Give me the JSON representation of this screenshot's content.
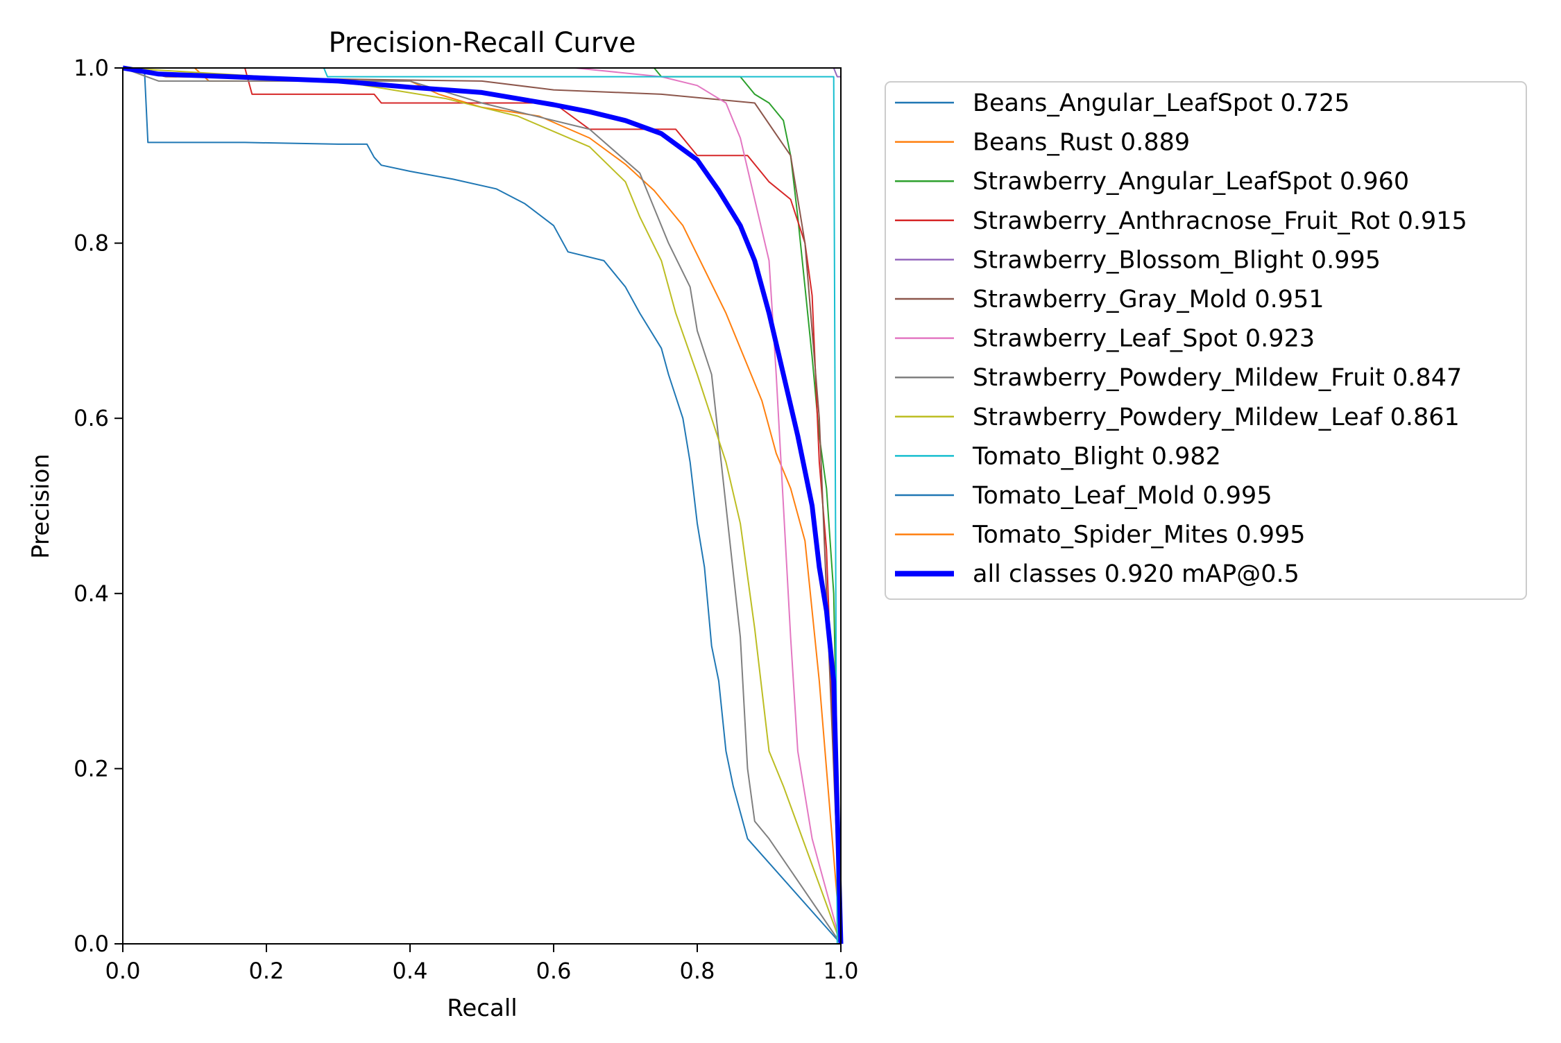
{
  "chart_data": {
    "type": "line",
    "title": "Precision-Recall Curve",
    "xlabel": "Recall",
    "ylabel": "Precision",
    "xlim": [
      0,
      1
    ],
    "ylim": [
      0,
      1
    ],
    "xticks": [
      "0.0",
      "0.2",
      "0.4",
      "0.6",
      "0.8",
      "1.0"
    ],
    "yticks": [
      "0.0",
      "0.2",
      "0.4",
      "0.6",
      "0.8",
      "1.0"
    ],
    "grid": false,
    "legend_position": "outside-right-top",
    "series": [
      {
        "name": "Beans_Angular_LeafSpot 0.725",
        "color": "#1f77b4",
        "width": 2,
        "points": [
          [
            0,
            1.0
          ],
          [
            0.03,
            1.0
          ],
          [
            0.035,
            0.915
          ],
          [
            0.17,
            0.915
          ],
          [
            0.3,
            0.913
          ],
          [
            0.34,
            0.913
          ],
          [
            0.35,
            0.898
          ],
          [
            0.36,
            0.889
          ],
          [
            0.4,
            0.882
          ],
          [
            0.46,
            0.873
          ],
          [
            0.52,
            0.862
          ],
          [
            0.56,
            0.845
          ],
          [
            0.6,
            0.82
          ],
          [
            0.62,
            0.79
          ],
          [
            0.67,
            0.78
          ],
          [
            0.7,
            0.75
          ],
          [
            0.72,
            0.72
          ],
          [
            0.75,
            0.68
          ],
          [
            0.76,
            0.65
          ],
          [
            0.78,
            0.6
          ],
          [
            0.79,
            0.55
          ],
          [
            0.8,
            0.48
          ],
          [
            0.81,
            0.43
          ],
          [
            0.82,
            0.34
          ],
          [
            0.83,
            0.3
          ],
          [
            0.84,
            0.22
          ],
          [
            0.85,
            0.18
          ],
          [
            0.87,
            0.12
          ],
          [
            1.0,
            0.0
          ]
        ]
      },
      {
        "name": "Beans_Rust 0.889",
        "color": "#ff7f0e",
        "width": 2,
        "points": [
          [
            0,
            1.0
          ],
          [
            0.1,
            1.0
          ],
          [
            0.12,
            0.985
          ],
          [
            0.4,
            0.985
          ],
          [
            0.44,
            0.97
          ],
          [
            0.5,
            0.955
          ],
          [
            0.58,
            0.945
          ],
          [
            0.65,
            0.92
          ],
          [
            0.7,
            0.89
          ],
          [
            0.74,
            0.86
          ],
          [
            0.78,
            0.82
          ],
          [
            0.81,
            0.77
          ],
          [
            0.84,
            0.72
          ],
          [
            0.87,
            0.66
          ],
          [
            0.89,
            0.62
          ],
          [
            0.91,
            0.56
          ],
          [
            0.93,
            0.52
          ],
          [
            0.95,
            0.46
          ],
          [
            0.97,
            0.3
          ],
          [
            1.0,
            0.0
          ]
        ]
      },
      {
        "name": "Strawberry_Angular_LeafSpot 0.960",
        "color": "#2ca02c",
        "width": 2,
        "points": [
          [
            0,
            1.0
          ],
          [
            0.74,
            1.0
          ],
          [
            0.75,
            0.99
          ],
          [
            0.86,
            0.99
          ],
          [
            0.88,
            0.97
          ],
          [
            0.9,
            0.96
          ],
          [
            0.92,
            0.94
          ],
          [
            0.93,
            0.9
          ],
          [
            0.94,
            0.83
          ],
          [
            0.95,
            0.75
          ],
          [
            0.96,
            0.67
          ],
          [
            0.97,
            0.58
          ],
          [
            0.98,
            0.52
          ],
          [
            0.99,
            0.4
          ],
          [
            1.0,
            0.0
          ]
        ]
      },
      {
        "name": "Strawberry_Anthracnose_Fruit_Rot 0.915",
        "color": "#d62728",
        "width": 2,
        "points": [
          [
            0,
            1.0
          ],
          [
            0.17,
            1.0
          ],
          [
            0.18,
            0.97
          ],
          [
            0.35,
            0.97
          ],
          [
            0.36,
            0.96
          ],
          [
            0.6,
            0.96
          ],
          [
            0.65,
            0.93
          ],
          [
            0.77,
            0.93
          ],
          [
            0.8,
            0.9
          ],
          [
            0.87,
            0.9
          ],
          [
            0.9,
            0.87
          ],
          [
            0.93,
            0.85
          ],
          [
            0.95,
            0.8
          ],
          [
            0.96,
            0.74
          ],
          [
            0.97,
            0.55
          ],
          [
            0.98,
            0.45
          ],
          [
            1.0,
            0.0
          ]
        ]
      },
      {
        "name": "Strawberry_Blossom_Blight 0.995",
        "color": "#9467bd",
        "width": 2,
        "points": [
          [
            0,
            1.0
          ],
          [
            0.99,
            1.0
          ],
          [
            0.995,
            0.99
          ],
          [
            1.0,
            0.99
          ],
          [
            1.0,
            0.0
          ]
        ]
      },
      {
        "name": "Strawberry_Gray_Mold 0.951",
        "color": "#8c564b",
        "width": 2,
        "points": [
          [
            0,
            1.0
          ],
          [
            0.06,
            0.99
          ],
          [
            0.5,
            0.985
          ],
          [
            0.6,
            0.975
          ],
          [
            0.75,
            0.97
          ],
          [
            0.88,
            0.96
          ],
          [
            0.93,
            0.9
          ],
          [
            0.95,
            0.8
          ],
          [
            0.96,
            0.7
          ],
          [
            0.97,
            0.6
          ],
          [
            0.98,
            0.4
          ],
          [
            1.0,
            0.0
          ]
        ]
      },
      {
        "name": "Strawberry_Leaf_Spot 0.923",
        "color": "#e377c2",
        "width": 2,
        "points": [
          [
            0,
            1.0
          ],
          [
            0.5,
            1.0
          ],
          [
            0.63,
            1.0
          ],
          [
            0.75,
            0.99
          ],
          [
            0.8,
            0.98
          ],
          [
            0.84,
            0.96
          ],
          [
            0.86,
            0.92
          ],
          [
            0.88,
            0.85
          ],
          [
            0.9,
            0.78
          ],
          [
            0.91,
            0.65
          ],
          [
            0.92,
            0.5
          ],
          [
            0.93,
            0.35
          ],
          [
            0.94,
            0.22
          ],
          [
            0.96,
            0.12
          ],
          [
            1.0,
            0.0
          ]
        ]
      },
      {
        "name": "Strawberry_Powdery_Mildew_Fruit 0.847",
        "color": "#7f7f7f",
        "width": 2,
        "points": [
          [
            0,
            1.0
          ],
          [
            0.05,
            0.985
          ],
          [
            0.4,
            0.985
          ],
          [
            0.5,
            0.96
          ],
          [
            0.65,
            0.93
          ],
          [
            0.72,
            0.88
          ],
          [
            0.76,
            0.8
          ],
          [
            0.79,
            0.75
          ],
          [
            0.8,
            0.7
          ],
          [
            0.82,
            0.65
          ],
          [
            0.84,
            0.5
          ],
          [
            0.86,
            0.35
          ],
          [
            0.87,
            0.2
          ],
          [
            0.88,
            0.14
          ],
          [
            0.9,
            0.12
          ],
          [
            1.0,
            0.0
          ]
        ]
      },
      {
        "name": "Strawberry_Powdery_Mildew_Leaf 0.861",
        "color": "#bcbd22",
        "width": 2,
        "points": [
          [
            0,
            1.0
          ],
          [
            0.3,
            0.985
          ],
          [
            0.45,
            0.965
          ],
          [
            0.55,
            0.945
          ],
          [
            0.65,
            0.91
          ],
          [
            0.7,
            0.87
          ],
          [
            0.72,
            0.83
          ],
          [
            0.75,
            0.78
          ],
          [
            0.77,
            0.72
          ],
          [
            0.8,
            0.65
          ],
          [
            0.82,
            0.6
          ],
          [
            0.84,
            0.55
          ],
          [
            0.86,
            0.48
          ],
          [
            0.88,
            0.36
          ],
          [
            0.9,
            0.22
          ],
          [
            0.92,
            0.18
          ],
          [
            1.0,
            0.0
          ]
        ]
      },
      {
        "name": "Tomato_Blight 0.982",
        "color": "#17becf",
        "width": 2,
        "points": [
          [
            0,
            1.0
          ],
          [
            0.28,
            1.0
          ],
          [
            0.285,
            0.99
          ],
          [
            0.99,
            0.99
          ],
          [
            0.995,
            0.0
          ],
          [
            1.0,
            0.0
          ]
        ]
      },
      {
        "name": "Tomato_Leaf_Mold 0.995",
        "color": "#1f77b4",
        "width": 2,
        "points": [
          [
            0,
            1.0
          ],
          [
            1.0,
            1.0
          ],
          [
            1.0,
            0.0
          ]
        ]
      },
      {
        "name": "Tomato_Spider_Mites 0.995",
        "color": "#ff7f0e",
        "width": 2,
        "points": [
          [
            0,
            1.0
          ],
          [
            1.0,
            1.0
          ],
          [
            1.0,
            0.0
          ]
        ]
      },
      {
        "name": "all classes 0.920 mAP@0.5",
        "color": "#0000ff",
        "width": 7,
        "points": [
          [
            0,
            1.0
          ],
          [
            0.05,
            0.993
          ],
          [
            0.15,
            0.99
          ],
          [
            0.3,
            0.985
          ],
          [
            0.4,
            0.978
          ],
          [
            0.5,
            0.972
          ],
          [
            0.55,
            0.965
          ],
          [
            0.6,
            0.958
          ],
          [
            0.65,
            0.95
          ],
          [
            0.7,
            0.94
          ],
          [
            0.75,
            0.925
          ],
          [
            0.8,
            0.895
          ],
          [
            0.83,
            0.86
          ],
          [
            0.86,
            0.82
          ],
          [
            0.88,
            0.78
          ],
          [
            0.9,
            0.72
          ],
          [
            0.92,
            0.65
          ],
          [
            0.94,
            0.58
          ],
          [
            0.96,
            0.5
          ],
          [
            0.97,
            0.43
          ],
          [
            0.98,
            0.38
          ],
          [
            0.99,
            0.3
          ],
          [
            1.0,
            0.0
          ]
        ]
      }
    ]
  }
}
